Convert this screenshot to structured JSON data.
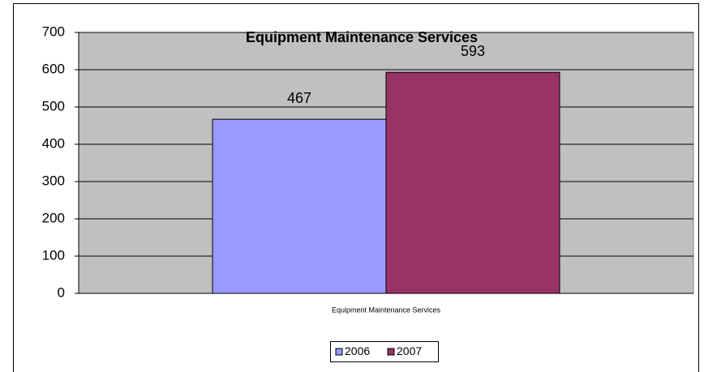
{
  "chart_data": {
    "type": "bar",
    "title": "Equipment Maintenance Services",
    "categories": [
      "Equipment Maintenance Services"
    ],
    "series": [
      {
        "name": "2006",
        "color": "#9999ff",
        "values": [
          467
        ]
      },
      {
        "name": "2007",
        "color": "#993366",
        "values": [
          593
        ]
      }
    ],
    "ylim": [
      0,
      700
    ],
    "yticks": [
      0,
      100,
      200,
      300,
      400,
      500,
      600,
      700
    ],
    "grid": true,
    "legend": "bottom"
  }
}
